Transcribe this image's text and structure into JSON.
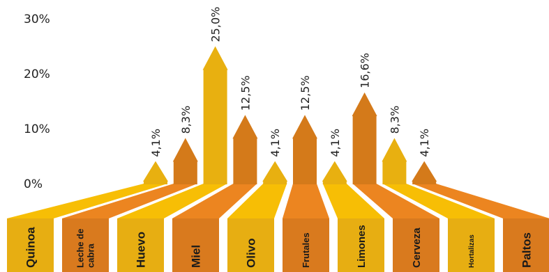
{
  "chart_data": {
    "type": "bar",
    "categories": [
      "Quinoa",
      "Leche de cabra",
      "Huevo",
      "Miel",
      "Olivo",
      "Frutales",
      "Limones",
      "Cerveza",
      "Hortalizas",
      "Paltos"
    ],
    "category_lines": [
      [
        "Quinoa"
      ],
      [
        "Leche de",
        "cabra"
      ],
      [
        "Huevo"
      ],
      [
        "Miel"
      ],
      [
        "Olivo"
      ],
      [
        "Frutales"
      ],
      [
        "Limones"
      ],
      [
        "Cerveza"
      ],
      [
        "Hortalizas"
      ],
      [
        "Paltos"
      ]
    ],
    "values": [
      4.1,
      8.3,
      25.0,
      12.5,
      4.1,
      12.5,
      4.1,
      16.6,
      8.3,
      4.1
    ],
    "value_labels": [
      "4,1%",
      "8,3%",
      "25,0%",
      "12,5%",
      "4,1%",
      "12,5%",
      "4,1%",
      "16,6%",
      "8,3%",
      "4,1%"
    ],
    "y_ticks": [
      "30%",
      "20%",
      "10%",
      "0%"
    ],
    "y_tick_values": [
      30,
      20,
      10,
      0
    ],
    "ylim": [
      0,
      30
    ],
    "colors": {
      "arrow_light": "#E8B010",
      "arrow_dark": "#D47A1A",
      "ribbon_light": "#F7BE05",
      "ribbon_dark": "#EC8520",
      "box_light": "#E7AE12",
      "box_dark": "#D97A1E"
    },
    "grid": false,
    "legend": "none"
  }
}
